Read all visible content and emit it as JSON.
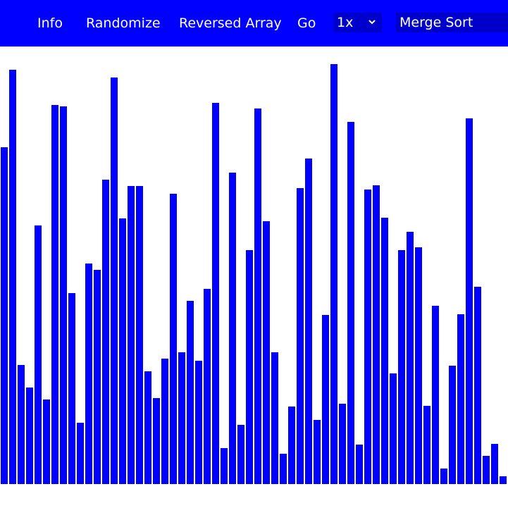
{
  "navbar": {
    "items": [
      {
        "label": "Info"
      },
      {
        "label": "Randomize"
      },
      {
        "label": "Reversed Array"
      },
      {
        "label": "Go"
      }
    ],
    "speed": {
      "value": "1x",
      "icon": "chevron-down-icon"
    },
    "algorithm": {
      "value": "Merge Sort"
    }
  },
  "colors": {
    "accent": "#0000ff",
    "background": "#ffffff"
  },
  "chart_data": {
    "type": "bar",
    "bar_color": "#0000ff",
    "ylim": [
      0,
      600
    ],
    "values": [
      478,
      588,
      169,
      137,
      367,
      120,
      538,
      536,
      271,
      87,
      313,
      304,
      432,
      577,
      377,
      423,
      423,
      160,
      122,
      178,
      412,
      187,
      260,
      175,
      277,
      541,
      51,
      442,
      84,
      332,
      533,
      373,
      187,
      43,
      110,
      420,
      462,
      91,
      240,
      596,
      114,
      514,
      56,
      418,
      424,
      378,
      157,
      332,
      358,
      336,
      111,
      253,
      22,
      168,
      241,
      519,
      280,
      40,
      57,
      11
    ]
  }
}
